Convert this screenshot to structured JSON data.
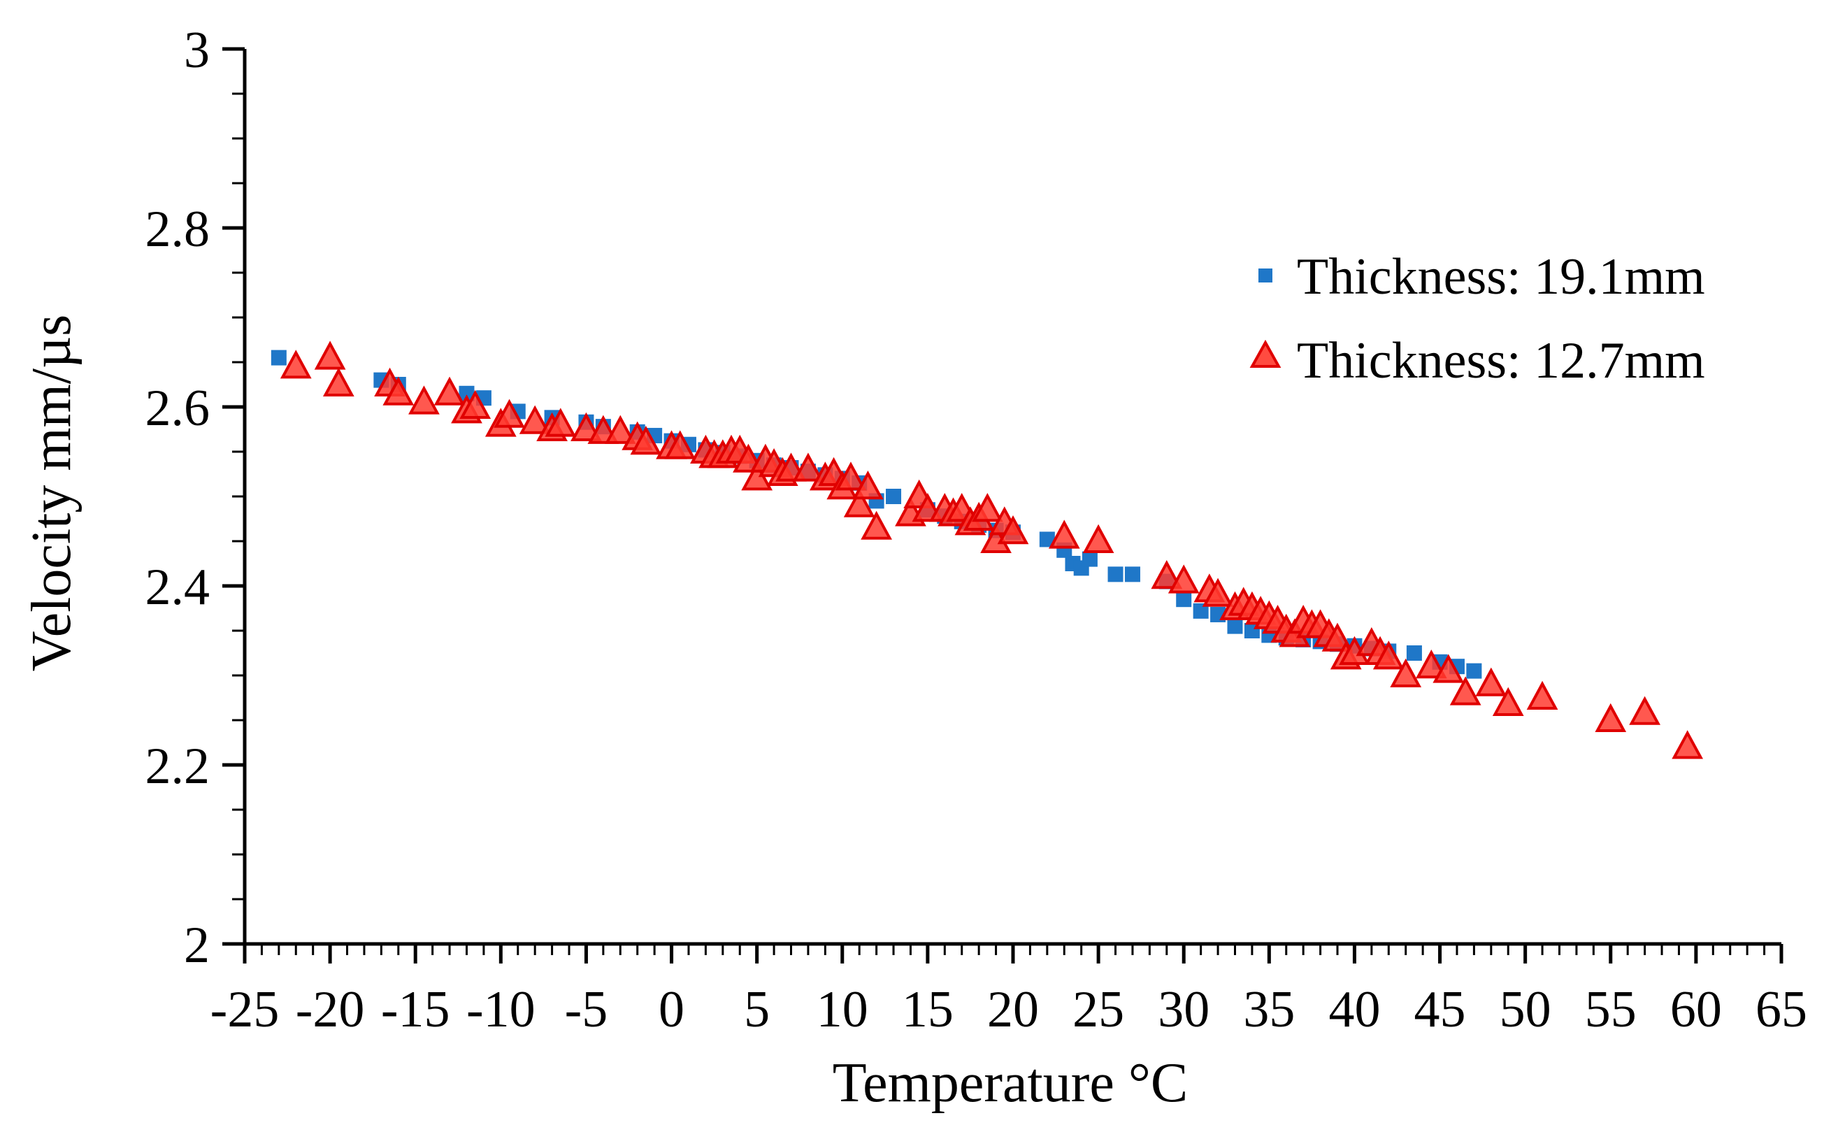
{
  "chart_data": {
    "type": "scatter",
    "title": "",
    "xlabel": "Temperature °C",
    "ylabel": "Velocity mm/µs",
    "xlim": [
      -25,
      65
    ],
    "ylim": [
      2,
      3
    ],
    "x_ticks": [
      -25,
      -20,
      -15,
      -10,
      -5,
      0,
      5,
      10,
      15,
      20,
      25,
      30,
      35,
      40,
      45,
      50,
      55,
      60,
      65
    ],
    "y_ticks": [
      2,
      2.2,
      2.4,
      2.6,
      2.8,
      3
    ],
    "x_tick_labels": [
      "-25",
      "-20",
      "-15",
      "-10",
      "-5",
      "0",
      "5",
      "10",
      "15",
      "20",
      "25",
      "30",
      "35",
      "40",
      "45",
      "50",
      "55",
      "60",
      "65"
    ],
    "y_tick_labels": [
      "2",
      "2.2",
      "2.4",
      "2.6",
      "2.8",
      "3"
    ],
    "grid": false,
    "legend_position": "top-right",
    "series": [
      {
        "name": "Thickness: 19.1mm",
        "marker": "square",
        "color": "#1f77c8",
        "points": [
          [
            -23,
            2.655
          ],
          [
            -17,
            2.63
          ],
          [
            -16,
            2.625
          ],
          [
            -12,
            2.615
          ],
          [
            -11,
            2.61
          ],
          [
            -9,
            2.595
          ],
          [
            -7,
            2.588
          ],
          [
            -5,
            2.583
          ],
          [
            -4,
            2.578
          ],
          [
            -2,
            2.572
          ],
          [
            -1,
            2.568
          ],
          [
            0,
            2.562
          ],
          [
            1,
            2.558
          ],
          [
            2,
            2.552
          ],
          [
            3,
            2.549
          ],
          [
            4,
            2.545
          ],
          [
            5,
            2.54
          ],
          [
            6,
            2.535
          ],
          [
            7,
            2.532
          ],
          [
            8,
            2.528
          ],
          [
            9,
            2.524
          ],
          [
            10,
            2.52
          ],
          [
            11,
            2.515
          ],
          [
            12,
            2.495
          ],
          [
            13,
            2.5
          ],
          [
            15,
            2.485
          ],
          [
            16,
            2.478
          ],
          [
            17,
            2.472
          ],
          [
            18,
            2.468
          ],
          [
            19,
            2.462
          ],
          [
            20,
            2.46
          ],
          [
            22,
            2.452
          ],
          [
            23,
            2.44
          ],
          [
            23.5,
            2.425
          ],
          [
            24,
            2.42
          ],
          [
            24.5,
            2.43
          ],
          [
            26,
            2.413
          ],
          [
            27,
            2.413
          ],
          [
            29,
            2.405
          ],
          [
            30,
            2.385
          ],
          [
            31,
            2.372
          ],
          [
            32,
            2.368
          ],
          [
            33,
            2.355
          ],
          [
            34,
            2.35
          ],
          [
            35,
            2.345
          ],
          [
            36,
            2.342
          ],
          [
            37,
            2.34
          ],
          [
            38,
            2.338
          ],
          [
            39,
            2.335
          ],
          [
            40,
            2.333
          ],
          [
            41,
            2.33
          ],
          [
            42,
            2.327
          ],
          [
            43.5,
            2.325
          ],
          [
            45,
            2.315
          ],
          [
            46,
            2.31
          ],
          [
            47,
            2.305
          ]
        ]
      },
      {
        "name": "Thickness: 12.7mm",
        "marker": "triangle",
        "color": "#ff3b30",
        "edge_color": "#e00000",
        "points": [
          [
            -22,
            2.645
          ],
          [
            -20,
            2.655
          ],
          [
            -19.5,
            2.625
          ],
          [
            -16.5,
            2.625
          ],
          [
            -16,
            2.615
          ],
          [
            -14.5,
            2.605
          ],
          [
            -13,
            2.615
          ],
          [
            -12,
            2.595
          ],
          [
            -11.5,
            2.6
          ],
          [
            -10,
            2.58
          ],
          [
            -9.5,
            2.59
          ],
          [
            -8,
            2.583
          ],
          [
            -7,
            2.575
          ],
          [
            -6.5,
            2.58
          ],
          [
            -5,
            2.575
          ],
          [
            -4,
            2.572
          ],
          [
            -3,
            2.572
          ],
          [
            -2,
            2.565
          ],
          [
            -1.5,
            2.56
          ],
          [
            0,
            2.555
          ],
          [
            0.5,
            2.555
          ],
          [
            2,
            2.55
          ],
          [
            2.5,
            2.545
          ],
          [
            3,
            2.545
          ],
          [
            3.5,
            2.55
          ],
          [
            4,
            2.55
          ],
          [
            4.5,
            2.54
          ],
          [
            5,
            2.52
          ],
          [
            5.5,
            2.54
          ],
          [
            6,
            2.535
          ],
          [
            6.5,
            2.525
          ],
          [
            7,
            2.53
          ],
          [
            8,
            2.53
          ],
          [
            9,
            2.52
          ],
          [
            9.5,
            2.525
          ],
          [
            10,
            2.51
          ],
          [
            10.5,
            2.52
          ],
          [
            11,
            2.49
          ],
          [
            11.5,
            2.51
          ],
          [
            12,
            2.465
          ],
          [
            14,
            2.48
          ],
          [
            14.5,
            2.5
          ],
          [
            15,
            2.485
          ],
          [
            16,
            2.485
          ],
          [
            16.5,
            2.48
          ],
          [
            17,
            2.485
          ],
          [
            17.5,
            2.47
          ],
          [
            18,
            2.475
          ],
          [
            18.5,
            2.485
          ],
          [
            19,
            2.45
          ],
          [
            19.5,
            2.47
          ],
          [
            20,
            2.46
          ],
          [
            23,
            2.455
          ],
          [
            25,
            2.45
          ],
          [
            29,
            2.41
          ],
          [
            30,
            2.405
          ],
          [
            31.5,
            2.395
          ],
          [
            32,
            2.39
          ],
          [
            33,
            2.375
          ],
          [
            33.5,
            2.38
          ],
          [
            34,
            2.375
          ],
          [
            34.5,
            2.37
          ],
          [
            35,
            2.365
          ],
          [
            35.5,
            2.36
          ],
          [
            36,
            2.35
          ],
          [
            36.5,
            2.345
          ],
          [
            37,
            2.36
          ],
          [
            37.5,
            2.355
          ],
          [
            38,
            2.355
          ],
          [
            38.5,
            2.345
          ],
          [
            39,
            2.34
          ],
          [
            39.5,
            2.32
          ],
          [
            40,
            2.325
          ],
          [
            41,
            2.335
          ],
          [
            41.5,
            2.325
          ],
          [
            42,
            2.32
          ],
          [
            43,
            2.3
          ],
          [
            44.5,
            2.31
          ],
          [
            45.5,
            2.305
          ],
          [
            46.5,
            2.28
          ],
          [
            48,
            2.29
          ],
          [
            49,
            2.268
          ],
          [
            51,
            2.275
          ],
          [
            55,
            2.25
          ],
          [
            57,
            2.258
          ],
          [
            59.5,
            2.22
          ]
        ]
      }
    ]
  }
}
